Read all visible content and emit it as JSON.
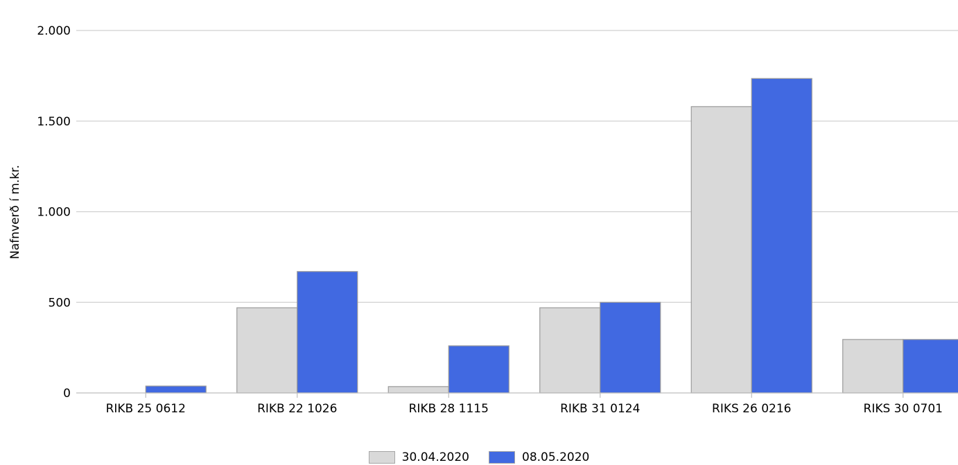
{
  "chart_data": {
    "type": "bar",
    "title": "",
    "xlabel": "",
    "ylabel": "Nafnverð í m.kr.",
    "categories": [
      "RIKB 25 0612",
      "RIKB 22 1026",
      "RIKB 28 1115",
      "RIKB 31 0124",
      "RIKS 26 0216",
      "RIKS 30 0701"
    ],
    "series": [
      {
        "name": "30.04.2020",
        "color": "#d9d9d9",
        "values": [
          0,
          470,
          35,
          470,
          1580,
          295
        ]
      },
      {
        "name": "08.05.2020",
        "color": "#4169e1",
        "values": [
          38,
          670,
          260,
          500,
          1735,
          295
        ]
      }
    ],
    "ylim": [
      0,
      2000
    ],
    "yticks": [
      0,
      500,
      1000,
      1500,
      2000
    ],
    "ytick_labels": [
      "0",
      "500",
      "1.000",
      "1.500",
      "2.000"
    ],
    "grid": true,
    "legend_position": "bottom-center"
  }
}
